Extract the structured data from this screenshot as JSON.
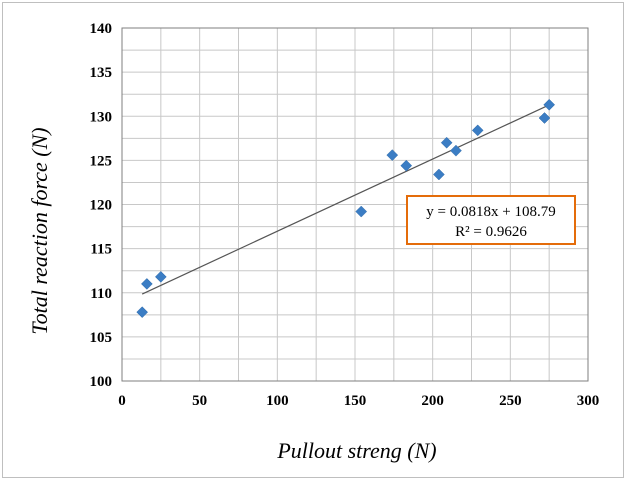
{
  "chart_data": {
    "type": "scatter",
    "xlabel": "Pullout streng (N)",
    "ylabel": "Total reaction force (N)",
    "xlim": [
      0,
      300
    ],
    "ylim": [
      100,
      140
    ],
    "x_ticks": [
      "0",
      "50",
      "100",
      "150",
      "200",
      "250",
      "300"
    ],
    "y_ticks": [
      "100",
      "105",
      "110",
      "115",
      "120",
      "125",
      "130",
      "135",
      "140"
    ],
    "grid": true,
    "marker_color": "#3b7dc4",
    "trendline_color": "#555555",
    "series": [
      {
        "points": [
          [
            13,
            107.8
          ],
          [
            16,
            111.0
          ],
          [
            25,
            111.8
          ],
          [
            154,
            119.2
          ],
          [
            174,
            125.6
          ],
          [
            183,
            124.4
          ],
          [
            204,
            123.4
          ],
          [
            209,
            127.0
          ],
          [
            215,
            126.1
          ],
          [
            229,
            128.4
          ],
          [
            272,
            129.8
          ],
          [
            275,
            131.3
          ]
        ]
      }
    ],
    "trendline": {
      "slope": 0.0818,
      "intercept": 108.79,
      "x_range": [
        13,
        275
      ],
      "equation_label": "y = 0.0818x + 108.79",
      "r2_label": "R² = 0.9626",
      "box_border_color": "#e46c0a"
    }
  }
}
